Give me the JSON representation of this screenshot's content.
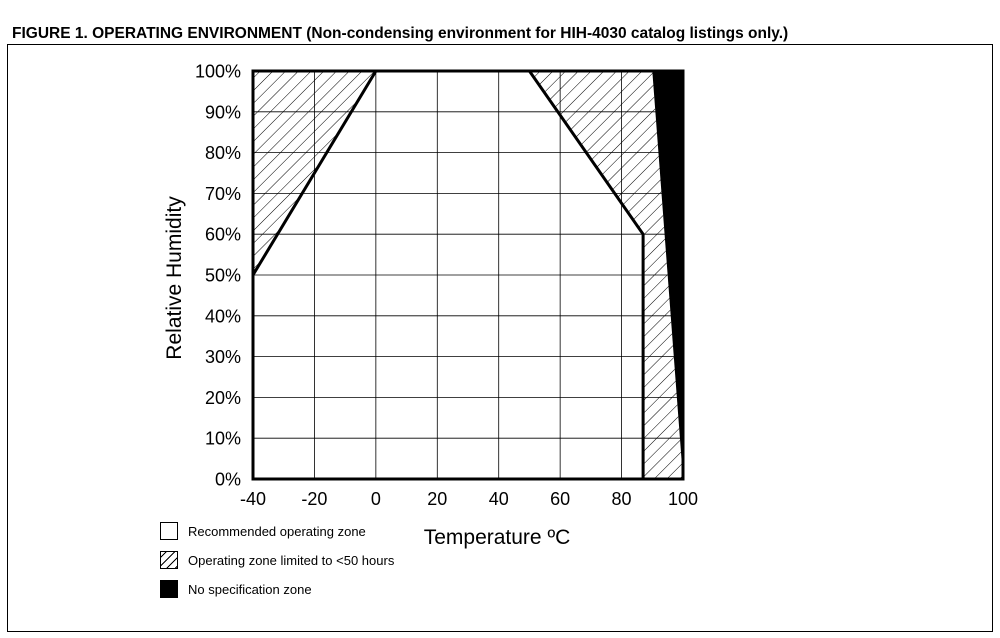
{
  "figure_title": "FIGURE 1. OPERATING ENVIRONMENT (Non-condensing environment for HIH-4030 catalog listings only.)",
  "legend": [
    {
      "label": "Recommended operating zone",
      "swatch": "white"
    },
    {
      "label": "Operating zone limited to <50 hours",
      "swatch": "hatch"
    },
    {
      "label": "No specification zone",
      "swatch": "black"
    }
  ],
  "chart_data": {
    "type": "area",
    "title": "FIGURE 1. OPERATING ENVIRONMENT (Non-condensing environment for HIH-4030 catalog listings only.)",
    "xlabel": "Temperature ºC",
    "ylabel": "Relative Humidity",
    "xlim": [
      -40,
      100
    ],
    "ylim": [
      0,
      100
    ],
    "x_ticks": [
      -40,
      -20,
      0,
      20,
      40,
      60,
      80,
      100
    ],
    "x_tick_labels": [
      "-40",
      "-20",
      "0",
      "20",
      "40",
      "60",
      "80",
      "100"
    ],
    "y_ticks": [
      0,
      10,
      20,
      30,
      40,
      50,
      60,
      70,
      80,
      90,
      100
    ],
    "y_tick_labels": [
      "0%",
      "10%",
      "20%",
      "30%",
      "40%",
      "50%",
      "60%",
      "70%",
      "80%",
      "90%",
      "100%"
    ],
    "grid": true,
    "legend_position": "bottom-left",
    "zones": [
      {
        "name": "Recommended operating zone",
        "fill": "white",
        "points": [
          [
            -40,
            0
          ],
          [
            -40,
            50
          ],
          [
            0,
            100
          ],
          [
            50,
            100
          ],
          [
            87,
            60
          ],
          [
            87,
            0
          ]
        ]
      },
      {
        "name": "Operating zone limited to <50 hours",
        "fill": "hatch",
        "points": [
          [
            -40,
            50
          ],
          [
            -40,
            100
          ],
          [
            0,
            100
          ]
        ]
      },
      {
        "name": "Operating zone limited to <50 hours",
        "fill": "hatch",
        "points": [
          [
            50,
            100
          ],
          [
            90,
            100
          ],
          [
            100,
            0
          ],
          [
            87,
            0
          ],
          [
            87,
            60
          ]
        ]
      },
      {
        "name": "No specification zone",
        "fill": "black",
        "points": [
          [
            90,
            100
          ],
          [
            100,
            100
          ],
          [
            100,
            0
          ]
        ]
      }
    ],
    "colors": {
      "line": "#000000",
      "grid": "#000000",
      "no_spec": "#000000",
      "background": "#ffffff"
    }
  }
}
